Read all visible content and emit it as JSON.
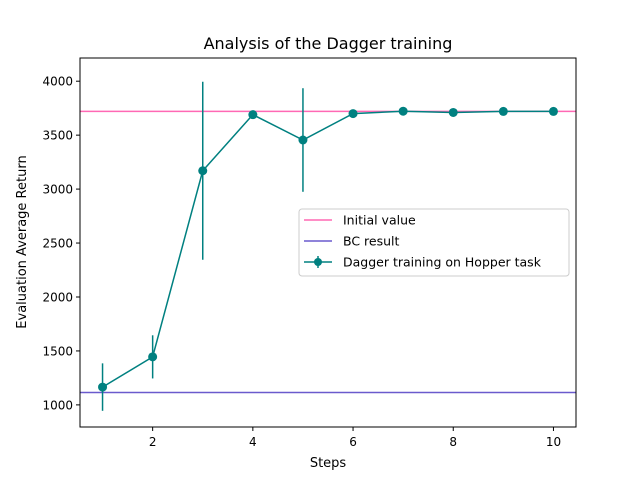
{
  "chart_data": {
    "type": "line",
    "title": "Analysis of the Dagger training",
    "xlabel": "Steps",
    "ylabel": "Evaluation Average Return",
    "xlim": [
      0.55,
      10.45
    ],
    "ylim": [
      795,
      4215
    ],
    "xticks": [
      2,
      4,
      6,
      8,
      10
    ],
    "yticks": [
      1000,
      1500,
      2000,
      2500,
      3000,
      3500,
      4000
    ],
    "grid": false,
    "legend_position": "center-right",
    "hlines": [
      {
        "name": "Initial value",
        "value": 3720,
        "color": "#ff69b4"
      },
      {
        "name": "BC result",
        "value": 1115,
        "color": "#6a5acd"
      }
    ],
    "series": [
      {
        "name": "Dagger training on Hopper task",
        "color": "#008080",
        "x": [
          1,
          2,
          3,
          4,
          5,
          6,
          7,
          8,
          9,
          10
        ],
        "y": [
          1165,
          1445,
          3170,
          3690,
          3455,
          3700,
          3722,
          3710,
          3720,
          3720
        ],
        "yerr": [
          220,
          200,
          825,
          10,
          480,
          15,
          10,
          8,
          8,
          8
        ]
      }
    ]
  }
}
